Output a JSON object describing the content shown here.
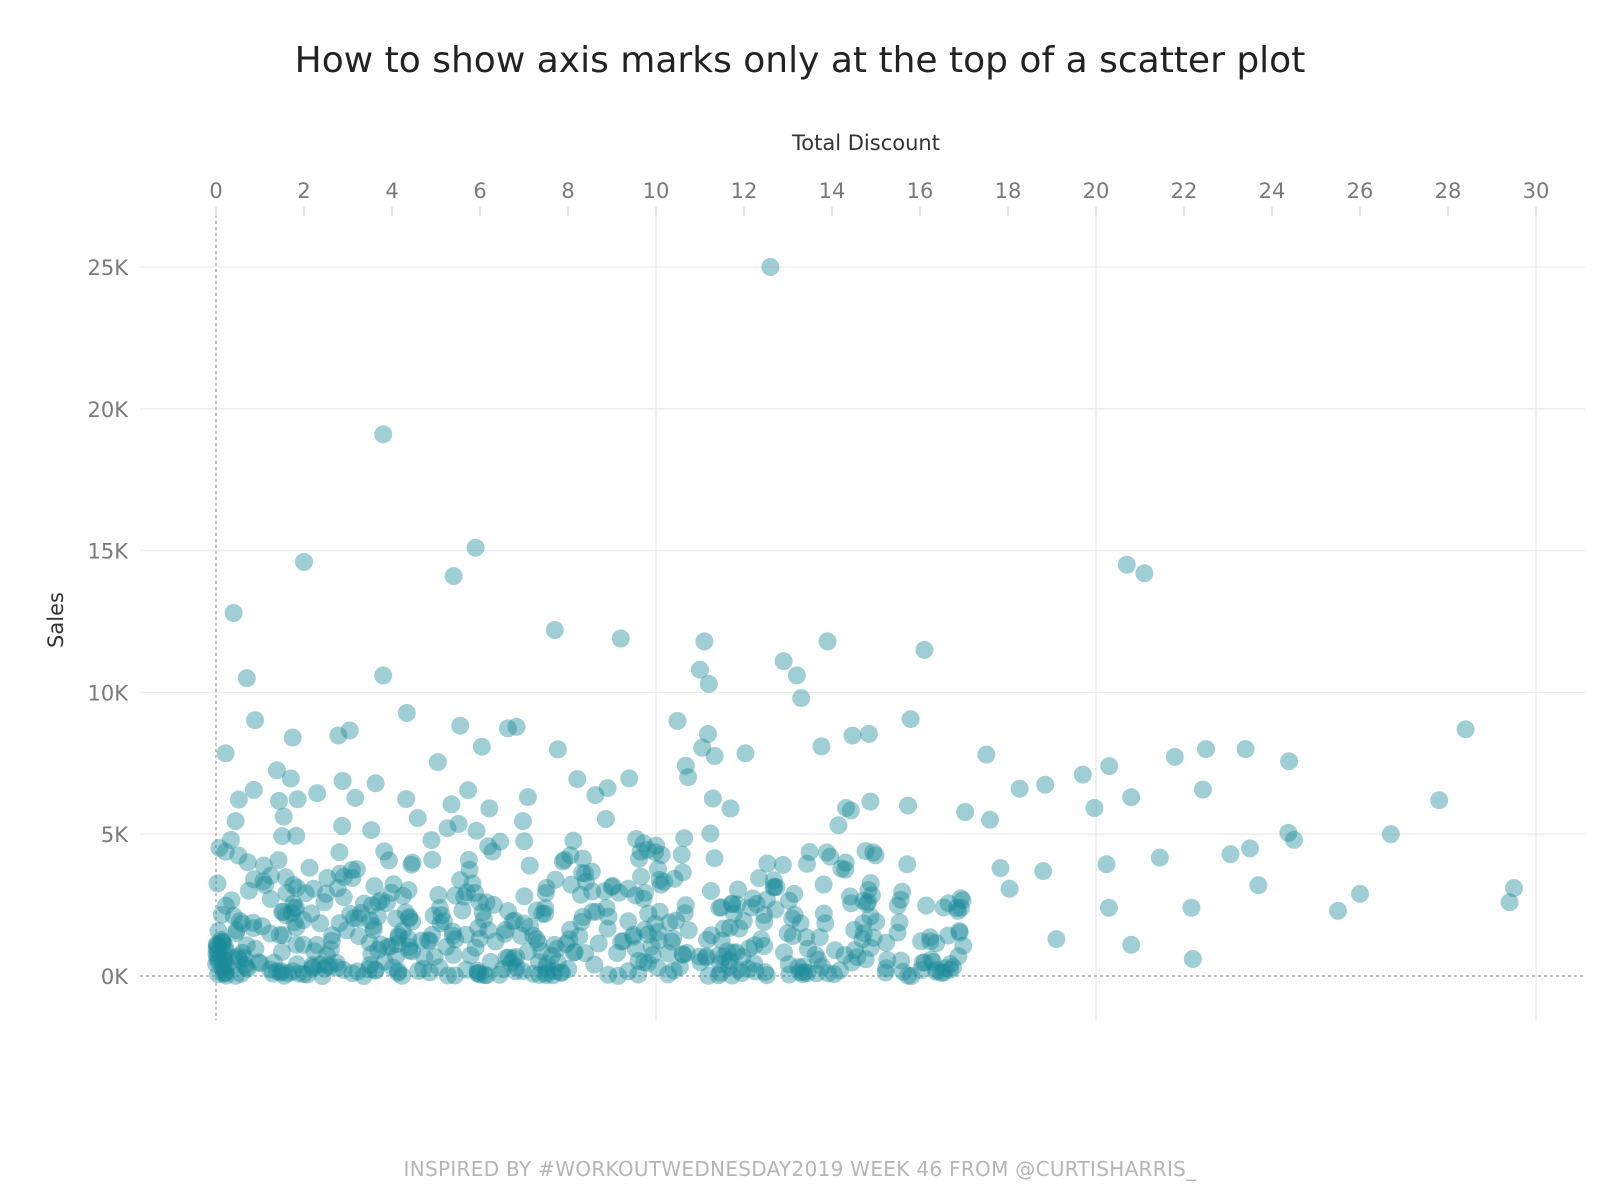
{
  "chart_data": {
    "type": "scatter",
    "title": "How to show axis marks only at the top of a scatter plot",
    "xlabel": "Total Discount",
    "ylabel": "Sales",
    "x_axis_position": "top",
    "xlim": [
      0,
      30
    ],
    "ylim": [
      0,
      25000
    ],
    "x_ticks": [
      0,
      2,
      4,
      6,
      8,
      10,
      12,
      14,
      16,
      18,
      20,
      22,
      24,
      26,
      28,
      30
    ],
    "x_tick_labels": [
      "0",
      "2",
      "4",
      "6",
      "8",
      "10",
      "12",
      "14",
      "16",
      "18",
      "20",
      "22",
      "24",
      "26",
      "28",
      "30"
    ],
    "y_ticks": [
      0,
      5000,
      10000,
      15000,
      20000,
      25000
    ],
    "y_tick_labels": [
      "0K",
      "5K",
      "10K",
      "15K",
      "20K",
      "25K"
    ],
    "grid": true,
    "point_color": "#1a8a99",
    "notable_points": [
      {
        "x": 12.6,
        "y": 25000
      },
      {
        "x": 3.8,
        "y": 19100
      },
      {
        "x": 5.9,
        "y": 15100
      },
      {
        "x": 2.0,
        "y": 14600
      },
      {
        "x": 5.4,
        "y": 14100
      },
      {
        "x": 20.7,
        "y": 14500
      },
      {
        "x": 21.1,
        "y": 14200
      },
      {
        "x": 0.4,
        "y": 12800
      },
      {
        "x": 7.7,
        "y": 12200
      },
      {
        "x": 9.2,
        "y": 11900
      },
      {
        "x": 11.1,
        "y": 11800
      },
      {
        "x": 13.9,
        "y": 11800
      },
      {
        "x": 16.1,
        "y": 11500
      },
      {
        "x": 3.8,
        "y": 10600
      },
      {
        "x": 0.7,
        "y": 10500
      },
      {
        "x": 12.9,
        "y": 11100
      },
      {
        "x": 13.2,
        "y": 10600
      },
      {
        "x": 11.0,
        "y": 10800
      },
      {
        "x": 11.2,
        "y": 10300
      },
      {
        "x": 13.3,
        "y": 9800
      },
      {
        "x": 28.4,
        "y": 8700
      },
      {
        "x": 22.5,
        "y": 8000
      },
      {
        "x": 23.4,
        "y": 8000
      },
      {
        "x": 27.8,
        "y": 6200
      },
      {
        "x": 26.7,
        "y": 5000
      },
      {
        "x": 29.5,
        "y": 3100
      },
      {
        "x": 29.4,
        "y": 2600
      },
      {
        "x": 25.5,
        "y": 2300
      },
      {
        "x": 26.0,
        "y": 2900
      },
      {
        "x": 22.2,
        "y": 600
      },
      {
        "x": 20.8,
        "y": 1100
      },
      {
        "x": 19.1,
        "y": 1300
      },
      {
        "x": 24.5,
        "y": 4800
      },
      {
        "x": 23.5,
        "y": 4500
      },
      {
        "x": 18.8,
        "y": 3700
      },
      {
        "x": 19.7,
        "y": 7100
      },
      {
        "x": 20.3,
        "y": 7400
      },
      {
        "x": 20.8,
        "y": 6300
      }
    ],
    "dense_region": {
      "x_range": [
        0,
        17
      ],
      "y_range": [
        0,
        6000
      ],
      "approx_count": 550
    }
  },
  "footer": "INSPIRED BY #WORKOUTWEDNESDAY2019 WEEK 46 FROM @CURTISHARRIS_"
}
